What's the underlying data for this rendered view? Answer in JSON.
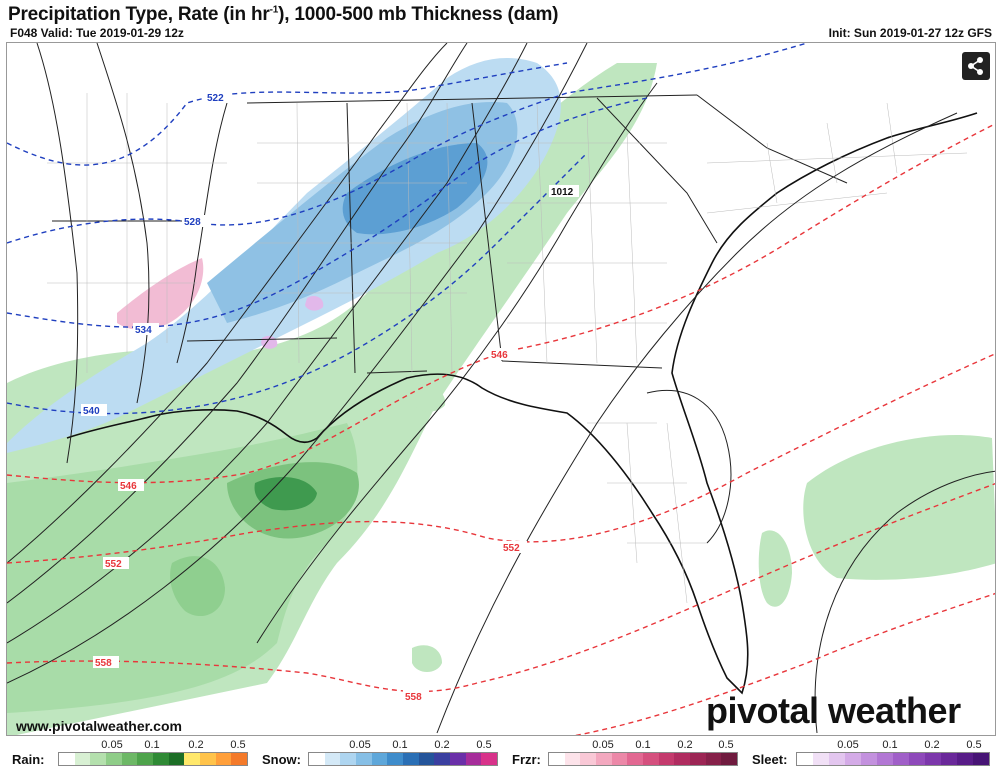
{
  "header": {
    "title_main": "Precipitation Type, Rate (in hr",
    "title_sup": "-1",
    "title_tail": "), 1000-500 mb Thickness (dam)",
    "valid": "F048 Valid: Tue 2019-01-29 12z",
    "init": "Init: Sun 2019-01-27 12z GFS"
  },
  "map": {
    "thickness_labels": {
      "t522": "522",
      "t528": "528",
      "t534": "534",
      "t540": "540",
      "t546a": "546",
      "t546b": "546",
      "t552a": "552",
      "t552b": "552",
      "t558a": "558",
      "t558b": "558"
    },
    "pressure_label": "1012",
    "colors": {
      "cold_thickness": "#1f3fbf",
      "warm_thickness": "#e8363b",
      "isobar": "#222222",
      "rain_light": "#bfe6bf",
      "rain_mid": "#8fcf8f",
      "rain_heavy": "#3f9a4f",
      "snow_light": "#bcdcf2",
      "snow_mid": "#7fb6df",
      "snow_heavy": "#4a8ec9",
      "frzr": "#f2bcd4",
      "sleet": "#e2b8ea"
    }
  },
  "brand": {
    "name": "pivotal weather",
    "site": "www.pivotalweather.com"
  },
  "legend": {
    "rain": {
      "label": "Rain:",
      "ticks": [
        "0.05",
        "0.1",
        "0.2",
        "0.5"
      ],
      "colors": [
        "#ffffff",
        "#d8f0d3",
        "#b4e0ad",
        "#8fcd88",
        "#6db866",
        "#4ea34b",
        "#2f8a35",
        "#1c6e26",
        "#ffe86b",
        "#ffc34a",
        "#ff9f3a",
        "#f47a2a"
      ]
    },
    "snow": {
      "label": "Snow:",
      "ticks": [
        "0.05",
        "0.1",
        "0.2",
        "0.5"
      ],
      "colors": [
        "#ffffff",
        "#d4e9f7",
        "#aed5f0",
        "#86bfe6",
        "#5ea7da",
        "#3e8ccb",
        "#2a6fb5",
        "#24549a",
        "#3a3fa0",
        "#6a2fa8",
        "#a62c9a",
        "#d8328a"
      ]
    },
    "frzr": {
      "label": "Frzr:",
      "ticks": [
        "0.05",
        "0.1",
        "0.2",
        "0.5"
      ],
      "colors": [
        "#ffffff",
        "#fde3ea",
        "#f9c8d6",
        "#f3a8bf",
        "#ec88a8",
        "#e26892",
        "#d5507e",
        "#c43a6d",
        "#b02c60",
        "#9c2554",
        "#862049",
        "#701b3f"
      ]
    },
    "sleet": {
      "label": "Sleet:",
      "ticks": [
        "0.05",
        "0.1",
        "0.2",
        "0.5"
      ],
      "colors": [
        "#ffffff",
        "#f1e0f6",
        "#e3c6ef",
        "#d4abe7",
        "#c391de",
        "#b277d4",
        "#a05fc8",
        "#8e49ba",
        "#7c37ab",
        "#6a289a",
        "#581c88",
        "#471475"
      ]
    }
  }
}
